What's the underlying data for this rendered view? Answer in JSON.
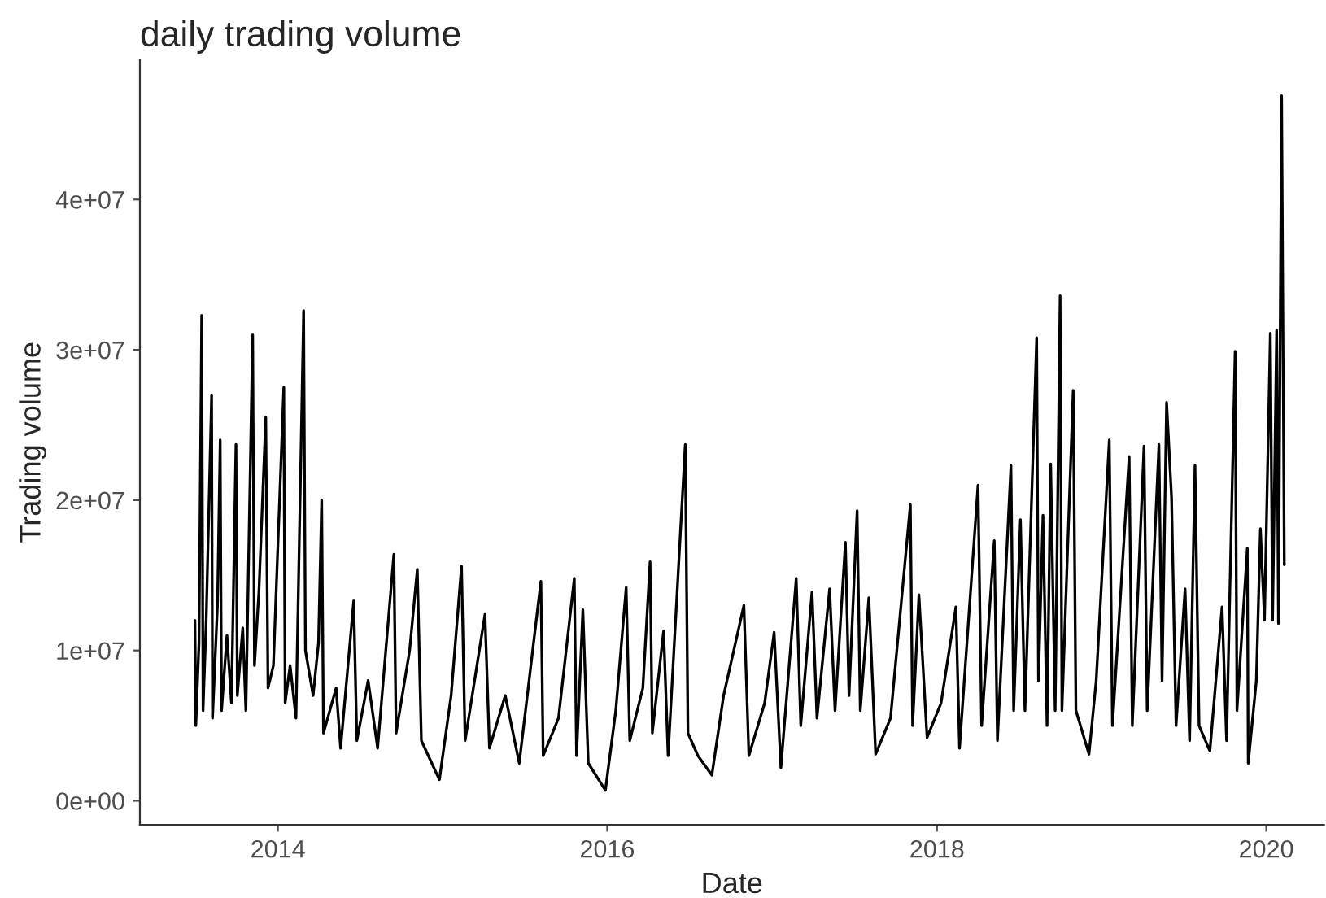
{
  "chart_data": {
    "type": "line",
    "title": "daily trading volume",
    "xlabel": "Date",
    "ylabel": "Trading volume",
    "x": [
      "2013-07-01",
      "2013-07-03",
      "2013-07-10",
      "2013-07-16",
      "2013-07-19",
      "2013-07-26",
      "2013-08-07",
      "2013-08-09",
      "2013-08-20",
      "2013-08-26",
      "2013-08-29",
      "2013-09-10",
      "2013-09-20",
      "2013-09-30",
      "2013-10-03",
      "2013-10-15",
      "2013-10-22",
      "2013-11-06",
      "2013-11-10",
      "2013-11-20",
      "2013-12-05",
      "2013-12-10",
      "2013-12-22",
      "2014-01-14",
      "2014-01-17",
      "2014-01-28",
      "2014-02-10",
      "2014-02-27",
      "2014-03-03",
      "2014-03-20",
      "2014-04-01",
      "2014-04-08",
      "2014-04-12",
      "2014-05-10",
      "2014-05-20",
      "2014-06-18",
      "2014-06-25",
      "2014-07-20",
      "2014-08-10",
      "2014-09-15",
      "2014-09-20",
      "2014-10-20",
      "2014-11-06",
      "2014-11-15",
      "2014-12-25",
      "2015-01-20",
      "2015-02-12",
      "2015-02-20",
      "2015-04-05",
      "2015-04-15",
      "2015-05-20",
      "2015-06-20",
      "2015-08-07",
      "2015-08-12",
      "2015-09-15",
      "2015-10-20",
      "2015-10-25",
      "2015-11-08",
      "2015-11-20",
      "2015-12-28",
      "2016-01-20",
      "2016-02-12",
      "2016-02-20",
      "2016-03-20",
      "2016-04-05",
      "2016-04-10",
      "2016-05-05",
      "2016-05-15",
      "2016-06-22",
      "2016-06-28",
      "2016-07-20",
      "2016-08-20",
      "2016-09-15",
      "2016-10-30",
      "2016-11-10",
      "2016-12-15",
      "2017-01-05",
      "2017-01-20",
      "2017-02-23",
      "2017-03-05",
      "2017-03-30",
      "2017-04-10",
      "2017-05-08",
      "2017-05-20",
      "2017-06-12",
      "2017-06-20",
      "2017-07-08",
      "2017-07-15",
      "2017-08-03",
      "2017-08-18",
      "2017-09-20",
      "2017-11-03",
      "2017-11-08",
      "2017-11-22",
      "2017-12-10",
      "2018-01-10",
      "2018-02-12",
      "2018-02-20",
      "2018-04-02",
      "2018-04-10",
      "2018-05-08",
      "2018-05-15",
      "2018-06-14",
      "2018-06-20",
      "2018-07-05",
      "2018-07-15",
      "2018-08-10",
      "2018-08-14",
      "2018-08-24",
      "2018-09-02",
      "2018-09-10",
      "2018-09-20",
      "2018-10-01",
      "2018-10-05",
      "2018-10-30",
      "2018-11-05",
      "2018-12-04",
      "2018-12-20",
      "2019-01-18",
      "2019-01-25",
      "2019-03-03",
      "2019-03-10",
      "2019-04-05",
      "2019-04-12",
      "2019-05-08",
      "2019-05-15",
      "2019-05-25",
      "2019-06-05",
      "2019-06-15",
      "2019-07-05",
      "2019-07-15",
      "2019-07-27",
      "2019-08-05",
      "2019-08-29",
      "2019-09-25",
      "2019-10-05",
      "2019-10-24",
      "2019-10-28",
      "2019-11-20",
      "2019-11-22",
      "2019-12-10",
      "2019-12-19",
      "2019-12-28",
      "2020-01-10",
      "2020-01-15",
      "2020-01-24",
      "2020-01-28",
      "2020-02-04",
      "2020-02-10"
    ],
    "series": [
      {
        "color": "#000000",
        "values": [
          12000000.0,
          5000000.0,
          10500000.0,
          32300000.0,
          6000000.0,
          12000000.0,
          27000000.0,
          5500000.0,
          13000000.0,
          24000000.0,
          6000000.0,
          11000000.0,
          6500000.0,
          23700000.0,
          7000000.0,
          11500000.0,
          6000000.0,
          31000000.0,
          9000000.0,
          14000000.0,
          25500000.0,
          7500000.0,
          9000000.0,
          27500000.0,
          6500000.0,
          9000000.0,
          5500000.0,
          32600000.0,
          10000000.0,
          7000000.0,
          10500000.0,
          20000000.0,
          4500000.0,
          7500000.0,
          3500000.0,
          13300000.0,
          4000000.0,
          8000000.0,
          3500000.0,
          16400000.0,
          4500000.0,
          10000000.0,
          15400000.0,
          4000000.0,
          1400000.0,
          7000000.0,
          15600000.0,
          4000000.0,
          12400000.0,
          3500000.0,
          7000000.0,
          2500000.0,
          14600000.0,
          3000000.0,
          5500000.0,
          14800000.0,
          3000000.0,
          12700000.0,
          2500000.0,
          700000.0,
          6000000.0,
          14200000.0,
          4000000.0,
          7500000.0,
          15900000.0,
          4500000.0,
          11300000.0,
          3000000.0,
          23700000.0,
          4500000.0,
          3000000.0,
          1700000.0,
          7000000.0,
          13000000.0,
          3000000.0,
          6500000.0,
          11200000.0,
          2200000.0,
          14800000.0,
          5000000.0,
          13900000.0,
          5500000.0,
          14100000.0,
          6000000.0,
          17200000.0,
          7000000.0,
          19300000.0,
          6000000.0,
          13500000.0,
          3100000.0,
          5500000.0,
          19700000.0,
          5000000.0,
          13700000.0,
          4200000.0,
          6500000.0,
          12900000.0,
          3500000.0,
          21000000.0,
          5000000.0,
          17300000.0,
          4000000.0,
          22300000.0,
          6000000.0,
          18700000.0,
          6000000.0,
          30800000.0,
          8000000.0,
          19000000.0,
          5000000.0,
          22400000.0,
          6000000.0,
          33600000.0,
          6000000.0,
          27300000.0,
          6000000.0,
          3100000.0,
          8000000.0,
          24000000.0,
          5000000.0,
          22900000.0,
          5000000.0,
          23600000.0,
          6000000.0,
          23700000.0,
          8000000.0,
          26500000.0,
          20200000.0,
          5000000.0,
          14100000.0,
          4000000.0,
          22300000.0,
          5000000.0,
          3300000.0,
          12900000.0,
          4000000.0,
          29900000.0,
          6000000.0,
          16800000.0,
          2500000.0,
          8000000.0,
          18100000.0,
          12000000.0,
          31100000.0,
          12000000.0,
          31300000.0,
          11800000.0,
          46900000.0,
          15700000.0
        ]
      }
    ],
    "xlim": [
      "2013-03-01",
      "2020-05-08"
    ],
    "xticks": [
      {
        "value": "2014-01-01",
        "label": "2014"
      },
      {
        "value": "2016-01-01",
        "label": "2016"
      },
      {
        "value": "2018-01-01",
        "label": "2018"
      },
      {
        "value": "2020-01-01",
        "label": "2020"
      }
    ],
    "ylim": [
      -1600000.0,
      49300000.0
    ],
    "yticks": [
      {
        "value": 0,
        "label": "0e+00"
      },
      {
        "value": 10000000,
        "label": "1e+07"
      },
      {
        "value": 20000000,
        "label": "2e+07"
      },
      {
        "value": 30000000,
        "label": "3e+07"
      },
      {
        "value": 40000000,
        "label": "4e+07"
      }
    ],
    "grid": false,
    "marker": "none",
    "line_style": "solid"
  }
}
